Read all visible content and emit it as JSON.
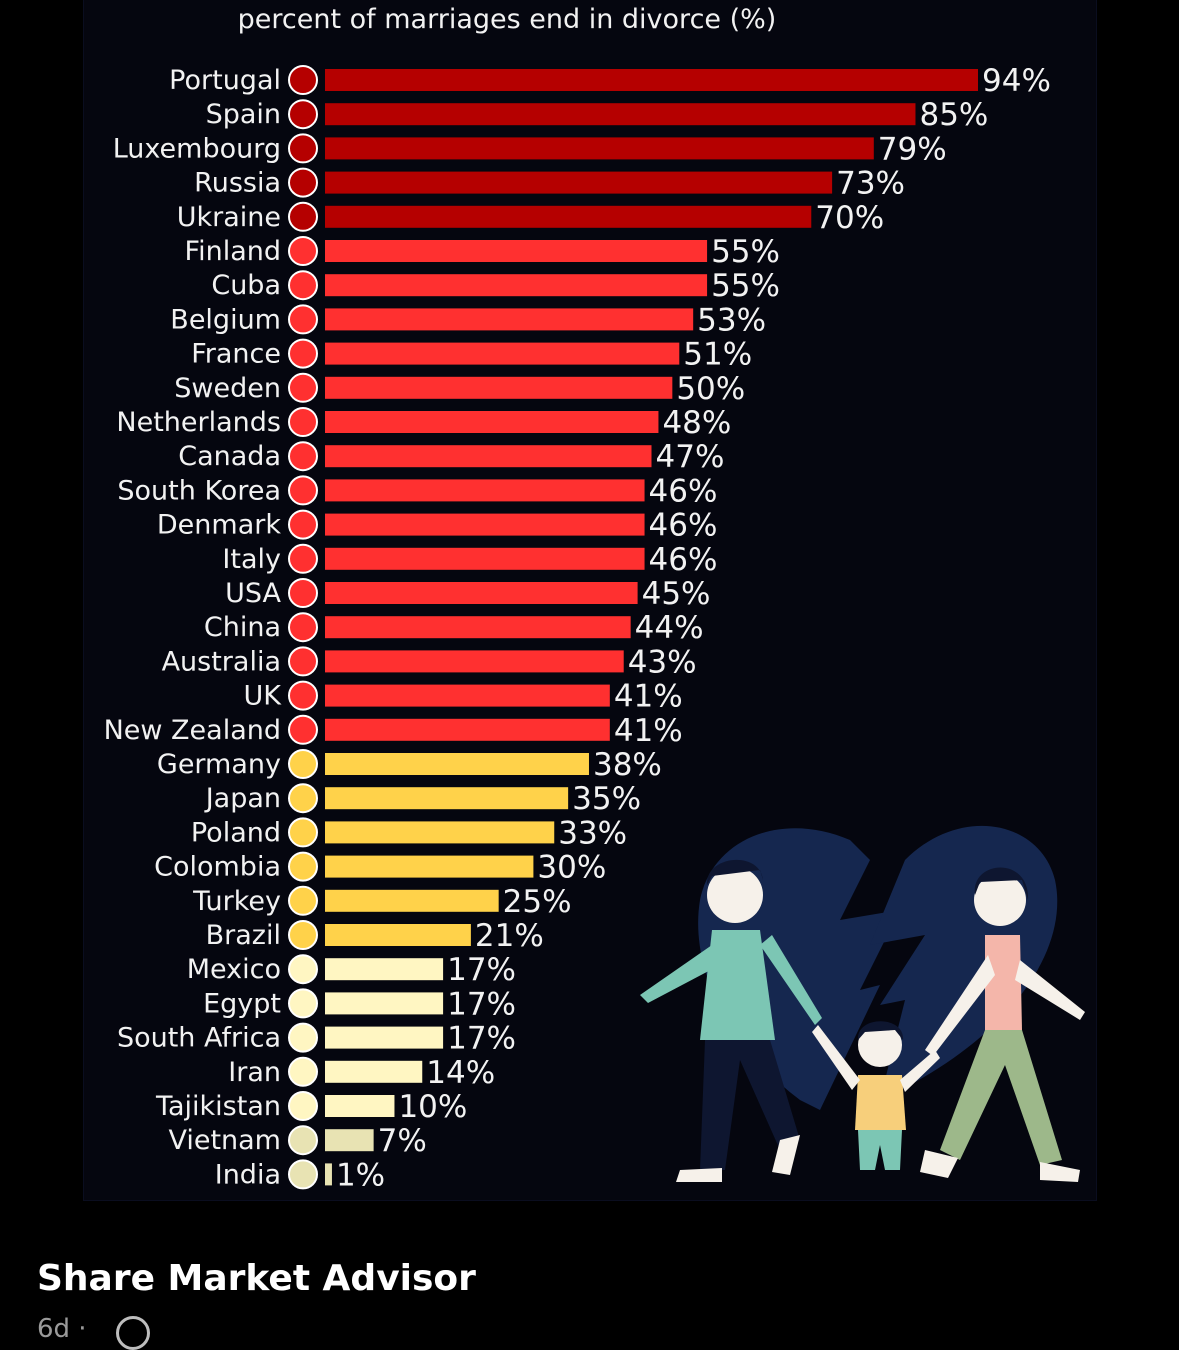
{
  "post": {
    "author": "Share Market Advisor",
    "meta": "6d ·"
  },
  "chart_data": {
    "type": "bar",
    "orientation": "horizontal",
    "title": "percent of marriages end in divorce (%)",
    "categories": [
      "Portugal",
      "Spain",
      "Luxembourg",
      "Russia",
      "Ukraine",
      "Finland",
      "Cuba",
      "Belgium",
      "France",
      "Sweden",
      "Netherlands",
      "Canada",
      "South Korea",
      "Denmark",
      "Italy",
      "USA",
      "China",
      "Australia",
      "UK",
      "New Zealand",
      "Germany",
      "Japan",
      "Poland",
      "Colombia",
      "Turkey",
      "Brazil",
      "Mexico",
      "Egypt",
      "South Africa",
      "Iran",
      "Tajikistan",
      "Vietnam",
      "India"
    ],
    "values": [
      94,
      85,
      79,
      73,
      70,
      55,
      55,
      53,
      51,
      50,
      48,
      47,
      46,
      46,
      46,
      45,
      44,
      43,
      41,
      41,
      38,
      35,
      33,
      30,
      25,
      21,
      17,
      17,
      17,
      14,
      10,
      7,
      1
    ],
    "value_labels": [
      "94%",
      "85%",
      "79%",
      "73%",
      "70%",
      "55%",
      "55%",
      "53%",
      "51%",
      "50%",
      "48%",
      "47%",
      "46%",
      "46%",
      "46%",
      "45%",
      "44%",
      "43%",
      "41%",
      "41%",
      "38%",
      "35%",
      "33%",
      "30%",
      "25%",
      "21%",
      "17%",
      "17%",
      "17%",
      "14%",
      "10%",
      "7%",
      "1%"
    ],
    "xlim": [
      0,
      94
    ],
    "grid": false,
    "colors": {
      "tier_high": "#b50000",
      "tier_mid": "#ff3030",
      "tier_low": "#ffd24a",
      "tier_lowest": "#fff6c2",
      "tier_min": "#e8e3b3"
    },
    "flag_icons": [
      "flag-portugal-icon",
      "flag-spain-icon",
      "flag-luxembourg-icon",
      "flag-russia-icon",
      "flag-ukraine-icon",
      "flag-finland-icon",
      "flag-cuba-icon",
      "flag-belgium-icon",
      "flag-france-icon",
      "flag-sweden-icon",
      "flag-netherlands-icon",
      "flag-canada-icon",
      "flag-south-korea-icon",
      "flag-denmark-icon",
      "flag-italy-icon",
      "flag-usa-icon",
      "flag-china-icon",
      "flag-australia-icon",
      "flag-uk-icon",
      "flag-new-zealand-icon",
      "flag-germany-icon",
      "flag-japan-icon",
      "flag-poland-icon",
      "flag-colombia-icon",
      "flag-turkey-icon",
      "flag-brazil-icon",
      "flag-mexico-icon",
      "flag-egypt-icon",
      "flag-south-africa-icon",
      "flag-iran-icon",
      "flag-tajikistan-icon",
      "flag-vietnam-icon",
      "flag-india-icon"
    ]
  }
}
